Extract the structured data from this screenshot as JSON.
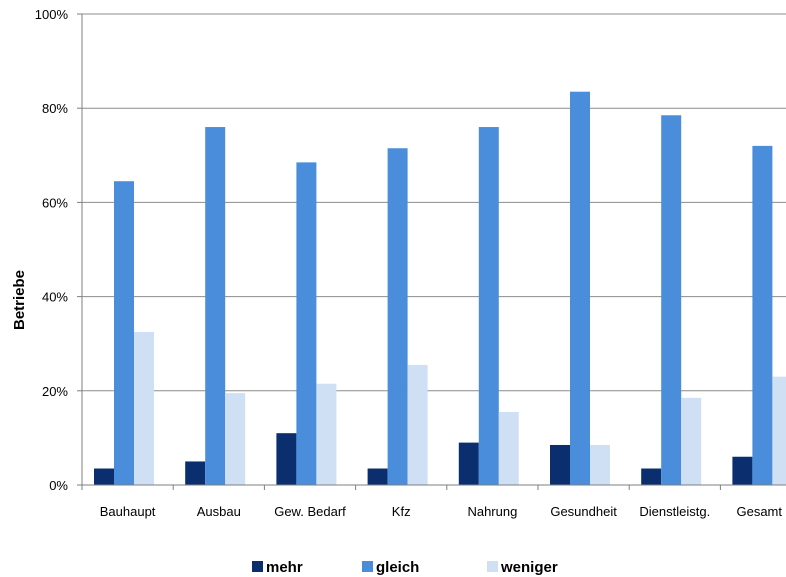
{
  "chart_data": {
    "type": "bar",
    "title": "",
    "xlabel": "",
    "ylabel": "Betriebe",
    "ylim": [
      0,
      100
    ],
    "yticks": [
      0,
      20,
      40,
      60,
      80,
      100
    ],
    "ytick_labels": [
      "0%",
      "20%",
      "40%",
      "60%",
      "80%",
      "100%"
    ],
    "grid": true,
    "legend_position": "bottom",
    "categories": [
      "Bauhaupt",
      "Ausbau",
      "Gew. Bedarf",
      "Kfz",
      "Nahrung",
      "Gesundheit",
      "Dienstleistg.",
      "Gesamt"
    ],
    "series": [
      {
        "name": "mehr",
        "color": "#0b2e6e",
        "values": [
          3.5,
          5,
          11,
          3.5,
          9,
          8.5,
          3.5,
          6
        ]
      },
      {
        "name": "gleich",
        "color": "#4a8edb",
        "values": [
          64.5,
          76,
          68.5,
          71.5,
          76,
          83.5,
          78.5,
          72
        ]
      },
      {
        "name": "weniger",
        "color": "#cfe0f4",
        "values": [
          32.5,
          19.5,
          21.5,
          25.5,
          15.5,
          8.5,
          18.5,
          23
        ]
      }
    ]
  }
}
